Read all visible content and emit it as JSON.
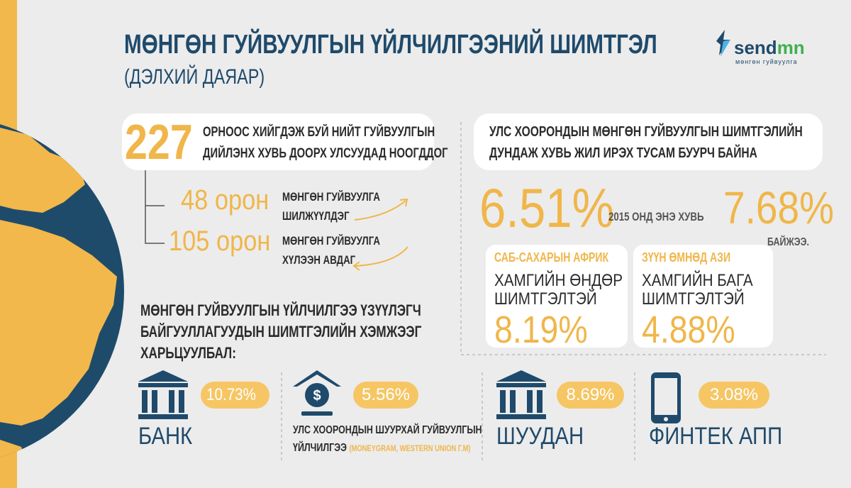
{
  "header": {
    "title": "МӨНГӨН ГУЙВУУЛГЫН ҮЙЛЧИЛГЭЭНИЙ ШИМТГЭЛ",
    "subtitle": "(ДЭЛХИЙ ДАЯАР)"
  },
  "logo": {
    "name_part1": "send",
    "name_part2": "mn",
    "tagline": "мөнгөн гуйвуулга"
  },
  "countries": {
    "total": "227",
    "text": [
      "ОРНООС ХИЙГДЭЖ БУЙ НИЙТ ГУЙВУУЛГЫН",
      "ДИЙЛЭНХ ХУВЬ ДООРХ УЛСУУДАД НООГДДОГ"
    ],
    "items": [
      {
        "count": "48 орон",
        "label": [
          "МӨНГӨН ГУЙВУУЛГА",
          "ШИЛЖҮҮЛДЭГ"
        ]
      },
      {
        "count": "105 орон",
        "label": [
          "МӨНГӨН ГУЙВУУЛГА",
          "ХҮЛЭЭН АВДАГ"
        ]
      }
    ]
  },
  "trend": {
    "title": [
      "УЛС ХООРОНДЫН МӨНГӨН ГУЙВУУЛГЫН ШИМТГЭЛИЙН",
      "ДУНДАЖ ХУВЬ ЖИЛ ИРЭХ ТУСАМ БУУРЧ БАЙНА"
    ],
    "current": "6.51%",
    "note": "2015 ОНД ЭНЭ ХУВЬ",
    "past": "7.68%",
    "suffix": "БАЙЖЭЭ."
  },
  "regions": [
    {
      "name": "САБ-САХАРЫН АФРИК",
      "label": [
        "ХАМГИЙН ӨНДӨР",
        "ШИМТГЭЛТЭЙ"
      ],
      "value": "8.19%"
    },
    {
      "name": "ЗҮҮН ӨМНӨД АЗИ",
      "label": [
        "ХАМГИЙН БАГА",
        "ШИМТГЭЛТЭЙ"
      ],
      "value": "4.88%"
    }
  ],
  "providers": {
    "title": [
      "МӨНГӨН ГУЙВУУЛГЫН ҮЙЛЧИЛГЭЭ ҮЗҮҮЛЭГЧ",
      "БАЙГУУЛЛАГУУДЫН ШИМТГЭЛИЙН ХЭМЖЭЭГ",
      "ХАРЬЦУУЛБАЛ:"
    ],
    "items": [
      {
        "name": [
          "БАНК"
        ],
        "value": "10.73%"
      },
      {
        "name": [
          "УЛС ХООРОНДЫН ШУУРХАЙ ГУЙВУУЛГЫН",
          "ҮЙЛЧИЛГЭЭ"
        ],
        "note": "(MONEYGRAM, WESTERN UNION Г.М)",
        "value": "5.56%"
      },
      {
        "name": [
          "ШУУДАН"
        ],
        "value": "8.69%"
      },
      {
        "name": [
          "ФИНТЕК АПП"
        ],
        "value": "3.08%"
      }
    ]
  }
}
